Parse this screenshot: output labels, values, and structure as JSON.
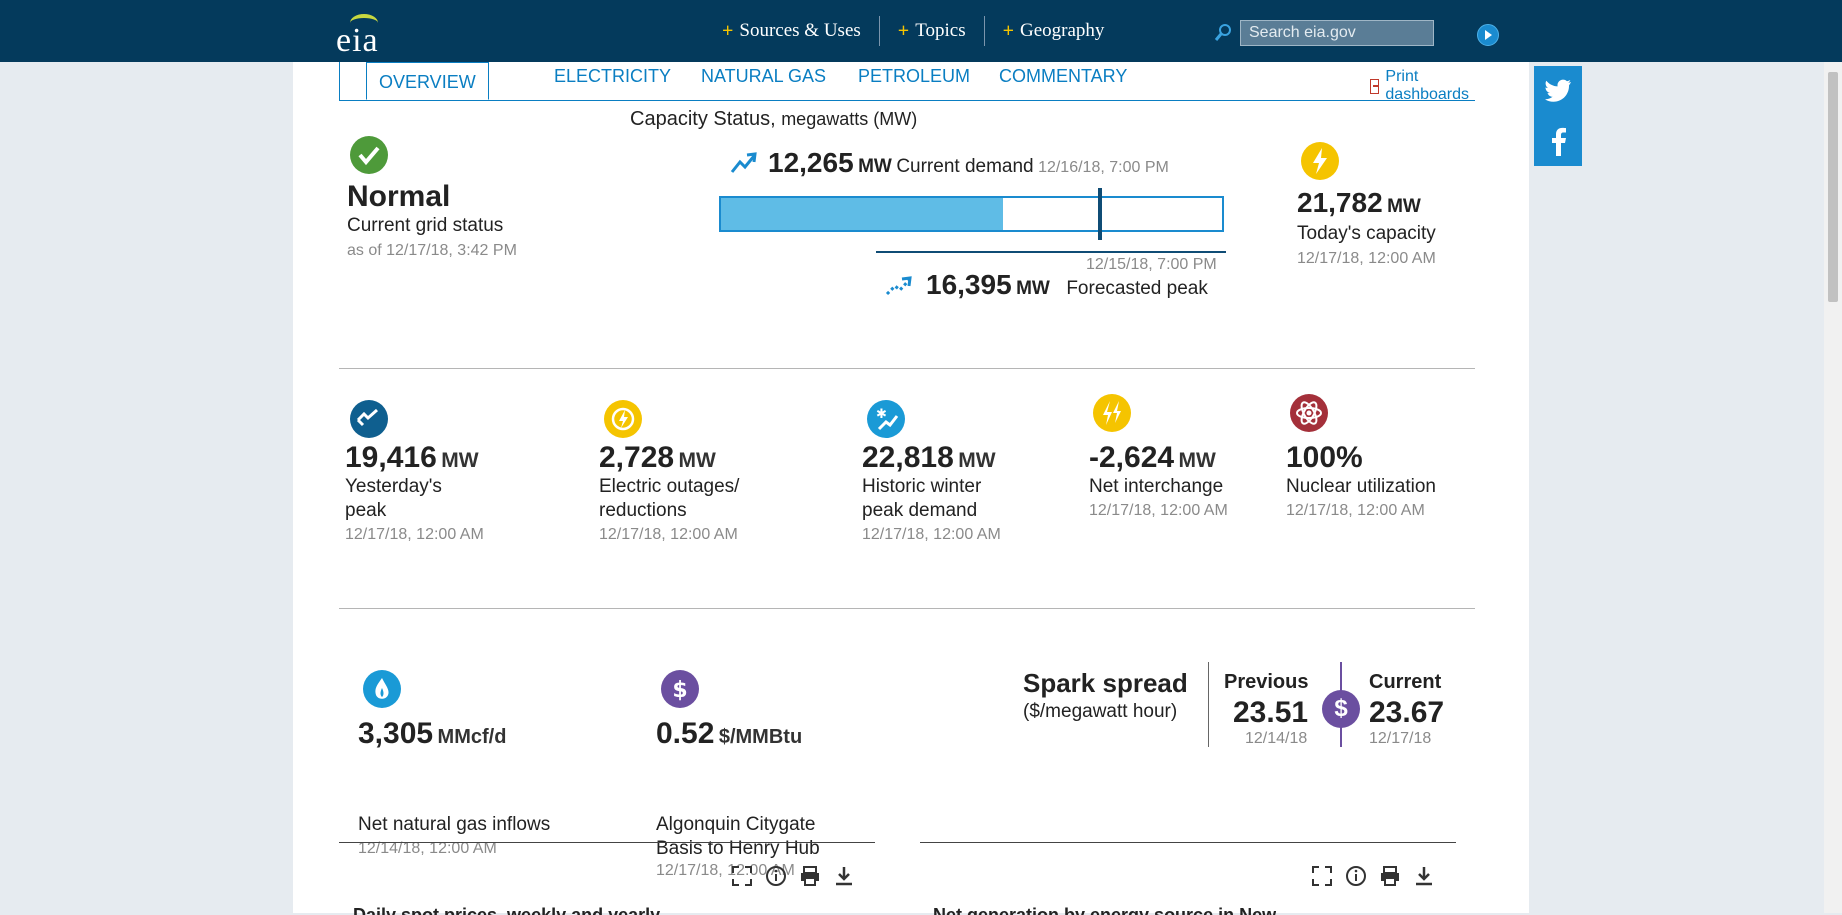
{
  "header": {
    "logo_text": "eia",
    "nav": [
      {
        "label": "Sources & Uses"
      },
      {
        "label": "Topics"
      },
      {
        "label": "Geography"
      }
    ],
    "search_placeholder": "Search eia.gov"
  },
  "tabs": [
    {
      "label": "OVERVIEW",
      "active": true
    },
    {
      "label": "ELECTRICITY"
    },
    {
      "label": "NATURAL GAS"
    },
    {
      "label": "PETROLEUM"
    },
    {
      "label": "COMMENTARY"
    }
  ],
  "print_label": "Print dashboards",
  "capacity": {
    "title": "Capacity Status,",
    "unit": "megawatts (MW)",
    "status": "Normal",
    "status_label": "Current grid status",
    "status_date": "as of 12/17/18, 3:42 PM",
    "current_value": "12,265",
    "current_unit": "MW",
    "current_label": "Current demand",
    "current_date": "12/16/18, 7:00 PM",
    "forecast_date": "12/15/18, 7:00 PM",
    "forecast_value": "16,395",
    "forecast_unit": "MW",
    "forecast_label": "Forecasted peak",
    "capacity_value": "21,782",
    "capacity_unit": "MW",
    "capacity_label": "Today's capacity",
    "capacity_date": "12/17/18, 12:00 AM",
    "demand_fraction": 0.563,
    "forecast_fraction": 0.753
  },
  "stats": [
    {
      "value": "19,416",
      "unit": "MW",
      "label1": "Yesterday's",
      "label2": "peak",
      "date": "12/17/18, 12:00 AM",
      "icon": "yesterday-peak-icon",
      "color": "#0f5f8f"
    },
    {
      "value": "2,728",
      "unit": "MW",
      "label1": "Electric outages/",
      "label2": "reductions",
      "date": "12/17/18, 12:00 AM",
      "icon": "outage-icon",
      "color": "#f5c400"
    },
    {
      "value": "22,818",
      "unit": "MW",
      "label1": "Historic winter",
      "label2": "peak demand",
      "date": "12/17/18, 12:00 AM",
      "icon": "winter-peak-icon",
      "color": "#1a9ad6"
    },
    {
      "value": "-2,624",
      "unit": "MW",
      "label1": "Net interchange",
      "label2": "",
      "date": "12/17/18, 12:00 AM",
      "icon": "interchange-icon",
      "color": "#f5c400"
    },
    {
      "value": "100%",
      "unit": "",
      "label1": "Nuclear utilization",
      "label2": "",
      "date": "12/17/18, 12:00 AM",
      "icon": "nuclear-icon",
      "color": "#a4303a"
    }
  ],
  "gas": {
    "value": "3,305",
    "unit": "MMcf/d",
    "label": "Net natural gas inflows",
    "date": "12/14/18, 12:00 AM"
  },
  "basis": {
    "value": "0.52",
    "unit": "$/MMBtu",
    "label1": "Algonquin Citygate",
    "label2": "Basis to Henry Hub",
    "date": "12/17/18, 12:00 AM"
  },
  "spark": {
    "title": "Spark spread",
    "subtitle": "($/megawatt hour)",
    "prev_label": "Previous",
    "prev_value": "23.51",
    "prev_date": "12/14/18",
    "curr_label": "Current",
    "curr_value": "23.67",
    "curr_date": "12/17/18",
    "symbol": "$"
  },
  "bottom": {
    "left_title": "Daily spot prices, weekly and yearly",
    "right_title": "Net generation by energy source in New"
  }
}
